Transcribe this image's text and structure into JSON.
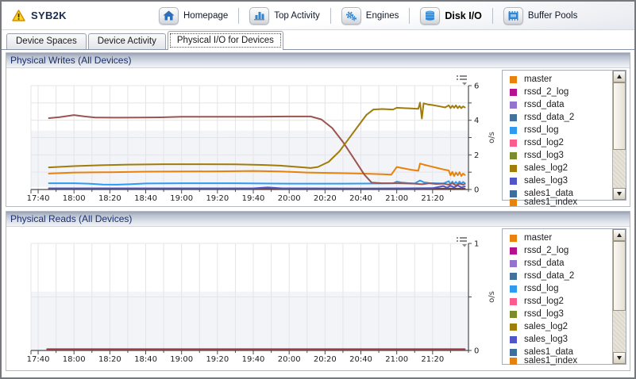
{
  "window": {
    "title": "SYB2K",
    "status_icon": "warning-icon"
  },
  "nav": {
    "items": [
      {
        "label": "Homepage",
        "icon": "home-icon",
        "active": false
      },
      {
        "label": "Top Activity",
        "icon": "bar-chart-icon",
        "active": false
      },
      {
        "label": "Engines",
        "icon": "gears-icon",
        "active": false
      },
      {
        "label": "Disk I/O",
        "icon": "disk-icon",
        "active": true
      },
      {
        "label": "Buffer Pools",
        "icon": "buffer-pools-icon",
        "active": false
      }
    ]
  },
  "tabs": {
    "items": [
      {
        "label": "Device Spaces",
        "active": false
      },
      {
        "label": "Device Activity",
        "active": false
      },
      {
        "label": "Physical I/O for Devices",
        "active": true
      }
    ]
  },
  "device_legend": {
    "items": [
      {
        "label": "master",
        "color": "#e8820c"
      },
      {
        "label": "rssd_2_log",
        "color": "#b5108f"
      },
      {
        "label": "rssd_data",
        "color": "#9473ce"
      },
      {
        "label": "rssd_data_2",
        "color": "#44719b"
      },
      {
        "label": "rssd_log",
        "color": "#2e9bf0"
      },
      {
        "label": "rssd_log2",
        "color": "#fb5c8d"
      },
      {
        "label": "rssd_log3",
        "color": "#7c8b2b"
      },
      {
        "label": "sales_log2",
        "color": "#a07c0a"
      },
      {
        "label": "sales_log3",
        "color": "#5055c8"
      },
      {
        "label": "sales1_data",
        "color": "#3e6e9e"
      }
    ],
    "partial_item": {
      "label": "sales1_index",
      "color": "#e8820c"
    }
  },
  "panels": [
    {
      "title": "Physical Writes (All Devices)",
      "options_icon": "chart-options-icon"
    },
    {
      "title": "Physical Reads (All Devices)",
      "options_icon": "chart-options-icon"
    }
  ],
  "chart_data": [
    {
      "type": "line",
      "title": "Physical Writes (All Devices)",
      "xlabel": "",
      "ylabel": "o/s",
      "ylim": [
        0,
        6
      ],
      "x_start": "17:36",
      "x_end": "21:40",
      "x_tick_labels": [
        "17:40",
        "18:00",
        "18:20",
        "18:40",
        "19:00",
        "19:20",
        "19:40",
        "20:00",
        "20:20",
        "20:40",
        "21:00",
        "21:20"
      ],
      "x_minor_every_min": 10,
      "y_ticks": [
        {
          "v": 0,
          "label": "0"
        },
        {
          "v": 1
        },
        {
          "v": 2,
          "label": "2"
        },
        {
          "v": 3
        },
        {
          "v": 4,
          "label": "4"
        },
        {
          "v": 5
        },
        {
          "v": 6,
          "label": "6"
        }
      ],
      "grid_y": [
        1,
        2,
        3,
        4,
        5,
        6
      ],
      "band": [
        0.15,
        3.4
      ],
      "grid": true,
      "legend_position": "right",
      "series": [
        {
          "name": "",
          "legend_visible": false,
          "color": "#8c3838",
          "points": [
            [
              "17:46",
              0.05
            ],
            [
              "21:38",
              0.05
            ]
          ]
        },
        {
          "name": "sales_log3",
          "color": "#5055c8",
          "points": [
            [
              "17:46",
              0.07
            ],
            [
              "19:40",
              0.07
            ],
            [
              "19:48",
              0.12
            ],
            [
              "19:56",
              0.07
            ],
            [
              "20:40",
              0.06
            ],
            [
              "21:20",
              0.08
            ],
            [
              "21:26",
              0.2
            ],
            [
              "21:28",
              0.1
            ],
            [
              "21:30",
              0.22
            ],
            [
              "21:32",
              0.12
            ],
            [
              "21:34",
              0.24
            ],
            [
              "21:36",
              0.12
            ],
            [
              "21:38",
              0.18
            ]
          ]
        },
        {
          "name": "rssd_log",
          "color": "#2e9bf0",
          "points": [
            [
              "17:46",
              0.36
            ],
            [
              "18:00",
              0.36
            ],
            [
              "18:08",
              0.34
            ],
            [
              "18:16",
              0.29
            ],
            [
              "18:24",
              0.28
            ],
            [
              "18:32",
              0.31
            ],
            [
              "18:40",
              0.35
            ],
            [
              "19:00",
              0.36
            ],
            [
              "19:30",
              0.36
            ],
            [
              "20:00",
              0.34
            ],
            [
              "20:30",
              0.34
            ],
            [
              "20:50",
              0.35
            ],
            [
              "20:58",
              0.36
            ],
            [
              "21:00",
              0.46
            ],
            [
              "21:03",
              0.4
            ],
            [
              "21:06",
              0.37
            ],
            [
              "21:10",
              0.35
            ],
            [
              "21:13",
              0.52
            ],
            [
              "21:15",
              0.42
            ],
            [
              "21:18",
              0.37
            ],
            [
              "21:22",
              0.36
            ],
            [
              "21:26",
              0.35
            ],
            [
              "21:29",
              0.48
            ],
            [
              "21:30",
              0.3
            ],
            [
              "21:31",
              0.46
            ],
            [
              "21:32",
              0.3
            ],
            [
              "21:33",
              0.44
            ],
            [
              "21:34",
              0.3
            ],
            [
              "21:35",
              0.46
            ],
            [
              "21:36",
              0.32
            ],
            [
              "21:37",
              0.44
            ],
            [
              "21:38",
              0.36
            ]
          ]
        },
        {
          "name": "master",
          "color": "#e8820c",
          "points": [
            [
              "17:46",
              0.92
            ],
            [
              "18:00",
              0.98
            ],
            [
              "18:20",
              1.0
            ],
            [
              "18:40",
              1.03
            ],
            [
              "19:00",
              1.04
            ],
            [
              "19:20",
              1.05
            ],
            [
              "19:40",
              1.07
            ],
            [
              "19:55",
              1.04
            ],
            [
              "20:10",
              0.98
            ],
            [
              "20:25",
              0.95
            ],
            [
              "20:40",
              0.92
            ],
            [
              "20:52",
              0.88
            ],
            [
              "20:57",
              0.86
            ],
            [
              "21:00",
              1.3
            ],
            [
              "21:04",
              1.22
            ],
            [
              "21:08",
              1.14
            ],
            [
              "21:12",
              1.08
            ],
            [
              "21:13",
              1.5
            ],
            [
              "21:15",
              1.44
            ],
            [
              "21:18",
              1.36
            ],
            [
              "21:22",
              1.26
            ],
            [
              "21:26",
              1.16
            ],
            [
              "21:29",
              1.1
            ],
            [
              "21:30",
              0.82
            ],
            [
              "21:31",
              1.02
            ],
            [
              "21:32",
              0.78
            ],
            [
              "21:33",
              0.98
            ],
            [
              "21:34",
              0.82
            ],
            [
              "21:35",
              1.0
            ],
            [
              "21:36",
              0.78
            ],
            [
              "21:37",
              0.92
            ],
            [
              "21:38",
              0.84
            ]
          ]
        },
        {
          "name": "",
          "legend_visible": false,
          "color": "#9c544e",
          "points": [
            [
              "17:46",
              4.12
            ],
            [
              "17:52",
              4.18
            ],
            [
              "18:00",
              4.3
            ],
            [
              "18:06",
              4.22
            ],
            [
              "18:12",
              4.16
            ],
            [
              "18:24",
              4.15
            ],
            [
              "18:36",
              4.16
            ],
            [
              "18:48",
              4.17
            ],
            [
              "19:00",
              4.2
            ],
            [
              "19:20",
              4.2
            ],
            [
              "19:40",
              4.2
            ],
            [
              "20:00",
              4.22
            ],
            [
              "20:12",
              4.22
            ],
            [
              "20:18",
              4.05
            ],
            [
              "20:24",
              3.55
            ],
            [
              "20:30",
              2.75
            ],
            [
              "20:36",
              1.8
            ],
            [
              "20:42",
              0.85
            ],
            [
              "20:46",
              0.4
            ],
            [
              "20:52",
              0.36
            ],
            [
              "21:00",
              0.36
            ],
            [
              "21:10",
              0.34
            ],
            [
              "21:14",
              0.3
            ],
            [
              "21:18",
              0.36
            ],
            [
              "21:22",
              0.32
            ],
            [
              "21:26",
              0.34
            ],
            [
              "21:29",
              0.28
            ],
            [
              "21:31",
              0.36
            ],
            [
              "21:33",
              0.24
            ],
            [
              "21:35",
              0.34
            ],
            [
              "21:37",
              0.28
            ],
            [
              "21:38",
              0.32
            ]
          ]
        },
        {
          "name": "sales_log2",
          "color": "#a07c0a",
          "points": [
            [
              "17:46",
              1.28
            ],
            [
              "18:00",
              1.35
            ],
            [
              "18:15",
              1.4
            ],
            [
              "18:30",
              1.44
            ],
            [
              "18:50",
              1.46
            ],
            [
              "19:10",
              1.46
            ],
            [
              "19:30",
              1.45
            ],
            [
              "19:45",
              1.42
            ],
            [
              "19:55",
              1.38
            ],
            [
              "20:05",
              1.3
            ],
            [
              "20:12",
              1.24
            ],
            [
              "20:16",
              1.3
            ],
            [
              "20:22",
              1.6
            ],
            [
              "20:28",
              2.2
            ],
            [
              "20:33",
              2.9
            ],
            [
              "20:38",
              3.6
            ],
            [
              "20:43",
              4.3
            ],
            [
              "20:47",
              4.62
            ],
            [
              "20:52",
              4.65
            ],
            [
              "20:58",
              4.62
            ],
            [
              "21:00",
              4.72
            ],
            [
              "21:04",
              4.7
            ],
            [
              "21:08",
              4.68
            ],
            [
              "21:12",
              4.66
            ],
            [
              "21:13",
              5.02
            ],
            [
              "21:14",
              4.1
            ],
            [
              "21:15",
              4.98
            ],
            [
              "21:17",
              4.92
            ],
            [
              "21:20",
              4.88
            ],
            [
              "21:24",
              4.8
            ],
            [
              "21:27",
              4.74
            ],
            [
              "21:29",
              4.86
            ],
            [
              "21:30",
              4.7
            ],
            [
              "21:31",
              4.84
            ],
            [
              "21:32",
              4.72
            ],
            [
              "21:33",
              4.86
            ],
            [
              "21:34",
              4.7
            ],
            [
              "21:35",
              4.82
            ],
            [
              "21:36",
              4.7
            ],
            [
              "21:37",
              4.8
            ],
            [
              "21:38",
              4.74
            ]
          ]
        }
      ]
    },
    {
      "type": "line",
      "title": "Physical Reads (All Devices)",
      "xlabel": "",
      "ylabel": "o/s",
      "ylim": [
        0,
        1
      ],
      "x_start": "17:36",
      "x_end": "21:40",
      "x_tick_labels": [
        "17:40",
        "18:00",
        "18:20",
        "18:40",
        "19:00",
        "19:20",
        "19:40",
        "20:00",
        "20:20",
        "20:40",
        "21:00",
        "21:20"
      ],
      "x_minor_every_min": 10,
      "y_ticks": [
        {
          "v": 0,
          "label": "0"
        },
        {
          "v": 0.5
        },
        {
          "v": 1,
          "label": "1"
        }
      ],
      "grid_y": [
        0.5,
        1
      ],
      "band": [
        0,
        0.55
      ],
      "grid": true,
      "legend_position": "right",
      "series": [
        {
          "name": "",
          "legend_visible": false,
          "color": "#99383f",
          "points": [
            [
              "17:45",
              0.012
            ],
            [
              "21:38",
              0.012
            ]
          ]
        }
      ]
    }
  ]
}
